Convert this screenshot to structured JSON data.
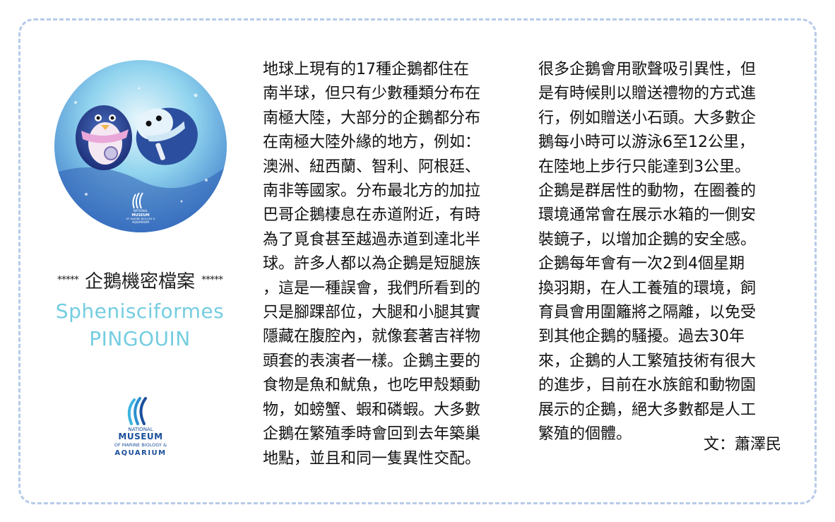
{
  "header": {
    "stars_left": "*****",
    "title": "企鵝機密檔案",
    "stars_right": "*****",
    "latin_name": "Sphenisciformes",
    "french_name": "PINGOUIN"
  },
  "photo_logo": {
    "line1": "NATIONAL",
    "line2": "MUSEUM",
    "line3": "OF MARINE BIOLOGY &",
    "line4": "AQUARIUM"
  },
  "logo": {
    "line1": "NATIONAL",
    "line2": "MUSEUM",
    "line3": "OF MARINE BIOLOGY &",
    "line4": "AQUARIUM"
  },
  "column1": [
    "地球上現有的17種企鵝都住在",
    "南半球，但只有少數種類分布在",
    "南極大陸，大部分的企鵝都分布",
    "在南極大陸外緣的地方，例如：",
    "澳洲、紐西蘭、智利、阿根廷、",
    "南非等國家。分布最北方的加拉",
    "巴哥企鵝棲息在赤道附近，有時",
    "為了覓食甚至越過赤道到達北半",
    "球。許多人都以為企鵝是短腿族",
    "，這是一種誤會，我們所看到的",
    "只是腳踝部位，大腿和小腿其實",
    "隱藏在腹腔內，就像套著吉祥物",
    "頭套的表演者一樣。企鵝主要的",
    "食物是魚和魷魚，也吃甲殼類動",
    "物，如螃蟹、蝦和磷蝦。大多數",
    "企鵝在繁殖季時會回到去年築巢",
    "地點，並且和同一隻異性交配。"
  ],
  "column2": [
    "很多企鵝會用歌聲吸引異性，但",
    "是有時候則以贈送禮物的方式進",
    "行，例如贈送小石頭。大多數企",
    "鵝每小時可以游泳6至12公里，",
    "在陸地上步行只能達到3公里。",
    "企鵝是群居性的動物，在圈養的",
    "環境通常會在展示水箱的一側安",
    "裝鏡子，以增加企鵝的安全感。",
    "企鵝每年會有一次2到4個星期",
    "換羽期，在人工養殖的環境，飼",
    "育員會用圍籬將之隔離，以免受",
    "到其他企鵝的騷擾。過去30年",
    "來，企鵝的人工繁殖技術有很大",
    "的進步，目前在水族館和動物園",
    "展示的企鵝，絕大多數都是人工",
    "繁殖的個體。"
  ],
  "author": "文：蕭澤民",
  "colors": {
    "border": "#b7cbe8",
    "latin_text": "#74cde0",
    "logo_blue": "#1a4f9c",
    "logo_cyan": "#3bb4e0"
  }
}
